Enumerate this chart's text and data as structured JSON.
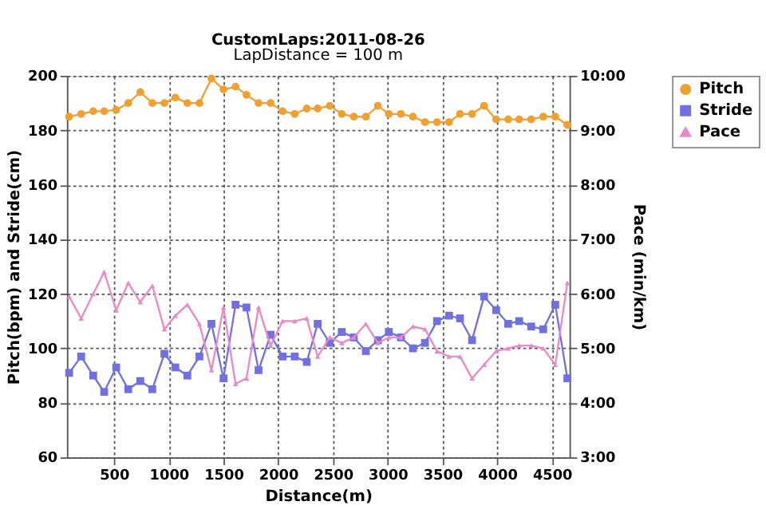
{
  "chart_data": {
    "type": "line",
    "title": "CustomLaps:2011-08-26",
    "subtitle": "LapDistance = 100 m",
    "xlabel": "Distance(m)",
    "ylabel": "Pitch(bpm) and Stride(cm)",
    "y2label": "Pace (min/km)",
    "x": [
      90,
      200,
      310,
      410,
      520,
      630,
      740,
      850,
      960,
      1060,
      1170,
      1280,
      1390,
      1500,
      1610,
      1710,
      1820,
      1930,
      2040,
      2150,
      2260,
      2360,
      2470,
      2580,
      2690,
      2800,
      2910,
      3010,
      3120,
      3230,
      3340,
      3450,
      3560,
      3660,
      3770,
      3880,
      3990,
      4100,
      4200,
      4310,
      4420,
      4530,
      4640
    ],
    "xlim": [
      70,
      4660
    ],
    "xticks": [
      500,
      1000,
      1500,
      2000,
      2500,
      3000,
      3500,
      4000,
      4500
    ],
    "ylim": [
      60,
      200
    ],
    "yticks": [
      60,
      80,
      100,
      120,
      140,
      160,
      180,
      200
    ],
    "y2lim": [
      3,
      10
    ],
    "y2ticks": [
      {
        "value": 3,
        "label": "3:00"
      },
      {
        "value": 4,
        "label": "4:00"
      },
      {
        "value": 5,
        "label": "5:00"
      },
      {
        "value": 6,
        "label": "6:00"
      },
      {
        "value": 7,
        "label": "7:00"
      },
      {
        "value": 8,
        "label": "8:00"
      },
      {
        "value": 9,
        "label": "9:00"
      },
      {
        "value": 10,
        "label": "10:00"
      }
    ],
    "grid": true,
    "legend": "top right",
    "line_style": "solid",
    "series": [
      {
        "name": "Pitch",
        "color": "#f0a030",
        "marker": "circle",
        "values": [
          185,
          186,
          187,
          187,
          187.5,
          190,
          194,
          190,
          190,
          192,
          190,
          190,
          199,
          195,
          196,
          193,
          190,
          190,
          187,
          186,
          188,
          188,
          189,
          186,
          185,
          185,
          189,
          186,
          186,
          185,
          183,
          183,
          183,
          186,
          186,
          189,
          184,
          184,
          184,
          184,
          185,
          185,
          182
        ]
      },
      {
        "name": "Stride",
        "color": "#7070e0",
        "marker": "square",
        "values": [
          91,
          97,
          90,
          84,
          93,
          85,
          88,
          85,
          98,
          93,
          90,
          97,
          109,
          89,
          116,
          115,
          92,
          105,
          97,
          97,
          95,
          109,
          102,
          106,
          104,
          99,
          103,
          106,
          104,
          100,
          102,
          110,
          112,
          111,
          103,
          119,
          114,
          109,
          110,
          108,
          107,
          116,
          89
        ]
      },
      {
        "name": "Pace",
        "color": "#e88ac8",
        "marker": "triangle",
        "axis": "y2",
        "values": [
          5.95,
          5.55,
          6.0,
          6.4,
          5.7,
          6.2,
          5.85,
          6.15,
          5.35,
          5.6,
          5.8,
          5.45,
          4.6,
          5.75,
          4.35,
          4.45,
          5.75,
          5.05,
          5.5,
          5.5,
          5.55,
          4.85,
          5.2,
          5.1,
          5.2,
          5.45,
          5.1,
          5.2,
          5.2,
          5.4,
          5.35,
          4.95,
          4.85,
          4.85,
          4.45,
          4.7,
          4.95,
          5.0,
          5.05,
          5.05,
          5.0,
          4.7,
          6.2
        ]
      }
    ]
  }
}
